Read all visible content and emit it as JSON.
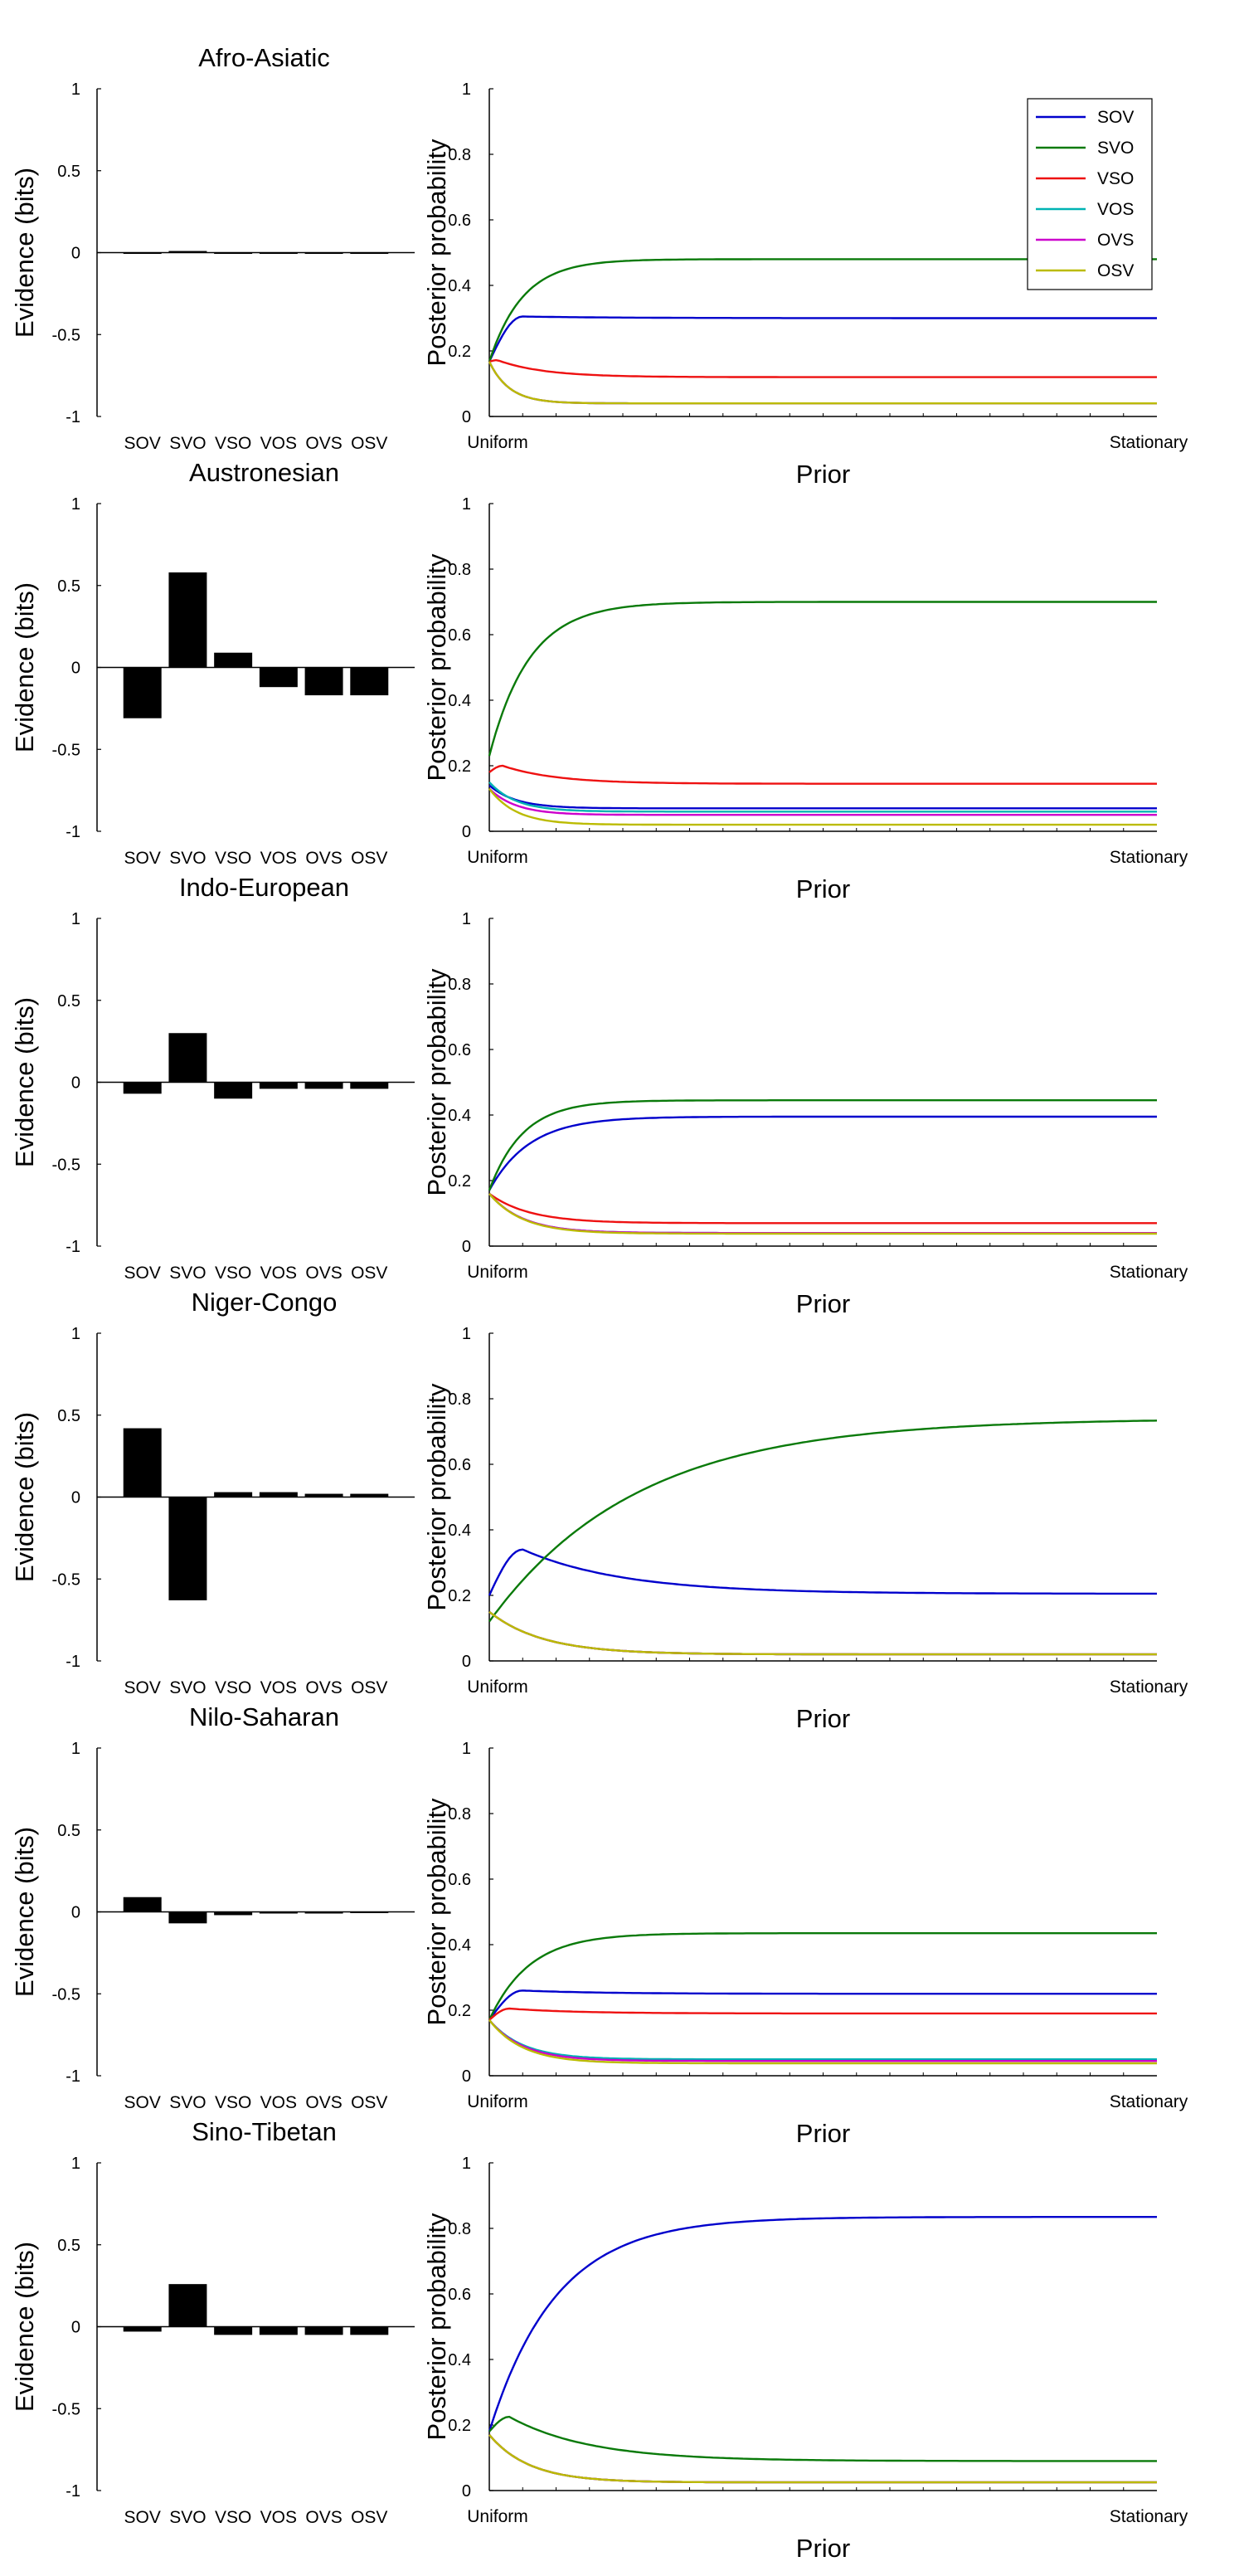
{
  "figure": {
    "family_titles": [
      "Afro-Asiatic",
      "Austronesian",
      "Indo-European",
      "Niger-Congo",
      "Nilo-Saharan",
      "Sino-Tibetan"
    ]
  },
  "colors": {
    "SOV": "#0000cc",
    "SVO": "#0a7a0a",
    "VSO": "#ee1111",
    "VOS": "#00b3b3",
    "OVS": "#cc00cc",
    "OSV": "#bbbb00",
    "bar": "#000000"
  },
  "chart_data": [
    {
      "type": "bar",
      "title": "Afro-Asiatic",
      "categories": [
        "SOV",
        "SVO",
        "VSO",
        "VOS",
        "OVS",
        "OSV"
      ],
      "values": [
        -0.005,
        0.01,
        -0.005,
        0,
        0,
        0
      ],
      "ylabel": "Evidence (bits)",
      "ylim": [
        -1,
        1
      ],
      "yticks": [
        "-1",
        "-0.5",
        "0",
        "0.5",
        "1"
      ]
    },
    {
      "type": "line",
      "xlabel": "Prior",
      "ylabel": "Posterior probability",
      "xticklabels": [
        "Uniform",
        "Stationary"
      ],
      "ylim": [
        0,
        1
      ],
      "yticks": [
        "0",
        "0.2",
        "0.4",
        "0.6",
        "0.8",
        "1"
      ],
      "legend": {
        "placement": "top-right",
        "entries": [
          "SOV",
          "SVO",
          "VSO",
          "VOS",
          "OVS",
          "OSV"
        ]
      },
      "series": [
        {
          "name": "SOV",
          "start": 0.167,
          "peak": 0.305,
          "peak_x": 0.05,
          "final": 0.3,
          "tau": 0.15
        },
        {
          "name": "SVO",
          "start": 0.167,
          "final": 0.48,
          "tau": 0.05
        },
        {
          "name": "VSO",
          "start": 0.167,
          "peak": 0.172,
          "peak_x": 0.012,
          "final": 0.12,
          "tau": 0.07
        },
        {
          "name": "VOS",
          "start": 0.167,
          "final": 0.04,
          "tau": 0.03
        },
        {
          "name": "OVS",
          "start": 0.167,
          "final": 0.04,
          "tau": 0.03
        },
        {
          "name": "OSV",
          "start": 0.167,
          "final": 0.04,
          "tau": 0.03
        }
      ]
    },
    {
      "type": "bar",
      "title": "Austronesian",
      "categories": [
        "SOV",
        "SVO",
        "VSO",
        "VOS",
        "OVS",
        "OSV"
      ],
      "values": [
        -0.31,
        0.58,
        0.09,
        -0.12,
        -0.17,
        -0.17
      ],
      "ylabel": "Evidence (bits)",
      "ylim": [
        -1,
        1
      ],
      "yticks": [
        "-1",
        "-0.5",
        "0",
        "0.5",
        "1"
      ]
    },
    {
      "type": "line",
      "xlabel": "Prior",
      "ylabel": "Posterior probability",
      "xticklabels": [
        "Uniform",
        "Stationary"
      ],
      "ylim": [
        0,
        1
      ],
      "yticks": [
        "0",
        "0.2",
        "0.4",
        "0.6",
        "0.8",
        "1"
      ],
      "series": [
        {
          "name": "SOV",
          "start": 0.14,
          "final": 0.07,
          "tau": 0.04
        },
        {
          "name": "SVO",
          "start": 0.23,
          "final": 0.7,
          "tau": 0.06
        },
        {
          "name": "VSO",
          "start": 0.18,
          "peak": 0.2,
          "peak_x": 0.02,
          "final": 0.145,
          "tau": 0.08
        },
        {
          "name": "VOS",
          "start": 0.15,
          "final": 0.06,
          "tau": 0.04
        },
        {
          "name": "OVS",
          "start": 0.13,
          "final": 0.05,
          "tau": 0.04
        },
        {
          "name": "OSV",
          "start": 0.13,
          "final": 0.02,
          "tau": 0.04
        }
      ]
    },
    {
      "type": "bar",
      "title": "Indo-European",
      "categories": [
        "SOV",
        "SVO",
        "VSO",
        "VOS",
        "OVS",
        "OSV"
      ],
      "values": [
        -0.07,
        0.3,
        -0.1,
        -0.04,
        -0.04,
        -0.04
      ],
      "ylabel": "Evidence (bits)",
      "ylim": [
        -1,
        1
      ],
      "yticks": [
        "-1",
        "-0.5",
        "0",
        "0.5",
        "1"
      ]
    },
    {
      "type": "line",
      "xlabel": "Prior",
      "ylabel": "Posterior probability",
      "xticklabels": [
        "Uniform",
        "Stationary"
      ],
      "ylim": [
        0,
        1
      ],
      "yticks": [
        "0",
        "0.2",
        "0.4",
        "0.6",
        "0.8",
        "1"
      ],
      "series": [
        {
          "name": "SOV",
          "start": 0.17,
          "final": 0.395,
          "tau": 0.06
        },
        {
          "name": "SVO",
          "start": 0.17,
          "final": 0.445,
          "tau": 0.05
        },
        {
          "name": "VSO",
          "start": 0.16,
          "final": 0.07,
          "tau": 0.06
        },
        {
          "name": "VOS",
          "start": 0.16,
          "final": 0.04,
          "tau": 0.05
        },
        {
          "name": "OVS",
          "start": 0.16,
          "final": 0.04,
          "tau": 0.05
        },
        {
          "name": "OSV",
          "start": 0.16,
          "final": 0.038,
          "tau": 0.05
        }
      ]
    },
    {
      "type": "bar",
      "title": "Niger-Congo",
      "categories": [
        "SOV",
        "SVO",
        "VSO",
        "VOS",
        "OVS",
        "OSV"
      ],
      "values": [
        0.42,
        -0.63,
        0.03,
        0.03,
        0.02,
        0.02
      ],
      "ylabel": "Evidence (bits)",
      "ylim": [
        -1,
        1
      ],
      "yticks": [
        "-1",
        "-0.5",
        "0",
        "0.5",
        "1"
      ]
    },
    {
      "type": "line",
      "xlabel": "Prior",
      "ylabel": "Posterior probability",
      "xticklabels": [
        "Uniform",
        "Stationary"
      ],
      "ylim": [
        0,
        1
      ],
      "yticks": [
        "0",
        "0.2",
        "0.4",
        "0.6",
        "0.8",
        "1"
      ],
      "series": [
        {
          "name": "SOV",
          "start": 0.2,
          "peak": 0.34,
          "peak_x": 0.05,
          "final": 0.205,
          "tau": 0.15
        },
        {
          "name": "SVO",
          "start": 0.12,
          "final": 0.74,
          "tau": 0.22
        },
        {
          "name": "VSO",
          "start": 0.15,
          "final": 0.02,
          "tau": 0.08
        },
        {
          "name": "VOS",
          "start": 0.15,
          "final": 0.02,
          "tau": 0.08
        },
        {
          "name": "OVS",
          "start": 0.15,
          "final": 0.02,
          "tau": 0.08
        },
        {
          "name": "OSV",
          "start": 0.15,
          "final": 0.02,
          "tau": 0.08
        }
      ]
    },
    {
      "type": "bar",
      "title": "Nilo-Saharan",
      "categories": [
        "SOV",
        "SVO",
        "VSO",
        "VOS",
        "OVS",
        "OSV"
      ],
      "values": [
        0.09,
        -0.07,
        -0.02,
        -0.01,
        -0.01,
        0
      ],
      "ylabel": "Evidence (bits)",
      "ylim": [
        -1,
        1
      ],
      "yticks": [
        "-1",
        "-0.5",
        "0",
        "0.5",
        "1"
      ]
    },
    {
      "type": "line",
      "xlabel": "Prior",
      "ylabel": "Posterior probability",
      "xticklabels": [
        "Uniform",
        "Stationary"
      ],
      "ylim": [
        0,
        1
      ],
      "yticks": [
        "0",
        "0.2",
        "0.4",
        "0.6",
        "0.8",
        "1"
      ],
      "series": [
        {
          "name": "SOV",
          "start": 0.17,
          "peak": 0.26,
          "peak_x": 0.05,
          "final": 0.25,
          "tau": 0.12
        },
        {
          "name": "SVO",
          "start": 0.17,
          "final": 0.435,
          "tau": 0.06
        },
        {
          "name": "VSO",
          "start": 0.17,
          "peak": 0.205,
          "peak_x": 0.03,
          "final": 0.19,
          "tau": 0.1
        },
        {
          "name": "VOS",
          "start": 0.17,
          "final": 0.05,
          "tau": 0.05
        },
        {
          "name": "OVS",
          "start": 0.17,
          "final": 0.045,
          "tau": 0.05
        },
        {
          "name": "OSV",
          "start": 0.17,
          "final": 0.038,
          "tau": 0.05
        }
      ]
    },
    {
      "type": "bar",
      "title": "Sino-Tibetan",
      "categories": [
        "SOV",
        "SVO",
        "VSO",
        "VOS",
        "OVS",
        "OSV"
      ],
      "values": [
        -0.03,
        0.26,
        -0.05,
        -0.05,
        -0.05,
        -0.05
      ],
      "ylabel": "Evidence (bits)",
      "ylim": [
        -1,
        1
      ],
      "yticks": [
        "-1",
        "-0.5",
        "0",
        "0.5",
        "1"
      ]
    },
    {
      "type": "line",
      "xlabel": "Prior",
      "ylabel": "Posterior probability",
      "xticklabels": [
        "Uniform",
        "Stationary"
      ],
      "ylim": [
        0,
        1
      ],
      "yticks": [
        "0",
        "0.2",
        "0.4",
        "0.6",
        "0.8",
        "1"
      ],
      "series": [
        {
          "name": "SOV",
          "start": 0.18,
          "final": 0.835,
          "tau": 0.1
        },
        {
          "name": "SVO",
          "start": 0.18,
          "peak": 0.225,
          "peak_x": 0.03,
          "final": 0.09,
          "tau": 0.12
        },
        {
          "name": "VSO",
          "start": 0.17,
          "final": 0.025,
          "tau": 0.06
        },
        {
          "name": "VOS",
          "start": 0.17,
          "final": 0.025,
          "tau": 0.06
        },
        {
          "name": "OVS",
          "start": 0.17,
          "final": 0.025,
          "tau": 0.06
        },
        {
          "name": "OSV",
          "start": 0.17,
          "final": 0.025,
          "tau": 0.06
        }
      ]
    }
  ]
}
